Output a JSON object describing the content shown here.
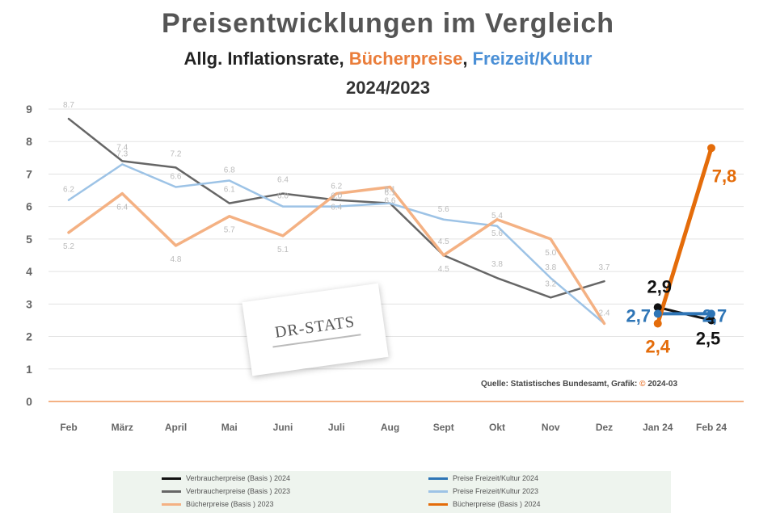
{
  "title": "Preisentwicklungen im  Vergleich",
  "subtitle": {
    "part1": "Allg. Inflationsrate, ",
    "part2": "Bücherpreise",
    "part3": ", ",
    "part4": "Freizeit/Kultur"
  },
  "year_label": "2024/2023",
  "source": {
    "text": "Quelle: Statistisches Bundesamt, Grafik: ",
    "highlight": "©",
    "suffix": " 2024-03"
  },
  "stamp_text": "DR-STATS",
  "colors": {
    "gray": "#666666",
    "light_blue": "#9dc3e6",
    "light_orange": "#f4b183",
    "black": "#111111",
    "blue": "#2e75b6",
    "orange": "#e46c0a",
    "axis_line": "#f4b183"
  },
  "legend": [
    {
      "label": "Verbraucherpreise (Basis ) 2024",
      "color": "#111111"
    },
    {
      "label": "Preise Freizeit/Kultur 2024",
      "color": "#2e75b6"
    },
    {
      "label": "Verbraucherpreise (Basis ) 2023",
      "color": "#666666"
    },
    {
      "label": "Preise Freizeit/Kultur 2023",
      "color": "#9dc3e6"
    },
    {
      "label": "Bücherpreise (Basis ) 2023",
      "color": "#f4b183"
    },
    {
      "label": "Bücherpreise (Basis ) 2024",
      "color": "#e46c0a"
    }
  ],
  "chart_data": {
    "type": "line",
    "categories": [
      "Feb",
      "März",
      "April",
      "Mai",
      "Juni",
      "Juli",
      "Aug",
      "Sept",
      "Okt",
      "Nov",
      "Dez",
      "Jan 24",
      "Feb 24"
    ],
    "ylim": [
      0,
      9
    ],
    "yticks": [
      0,
      1,
      2,
      3,
      4,
      5,
      6,
      7,
      8,
      9
    ],
    "grid": true,
    "series": [
      {
        "name": "Verbraucherpreise (Basis ) 2023",
        "color": "#666666",
        "width": 2.5,
        "values": [
          8.7,
          7.4,
          7.2,
          6.1,
          6.4,
          6.2,
          6.1,
          4.5,
          3.8,
          3.2,
          3.7,
          null,
          null
        ],
        "labels": [
          "8.7",
          "7.4",
          "7.2",
          "6.1",
          "6.4",
          "6.2",
          "6.1",
          "4.5",
          "3.8",
          "3.2",
          "3.7",
          null,
          null
        ]
      },
      {
        "name": "Preise Freizeit/Kultur 2023",
        "color": "#9dc3e6",
        "width": 2.5,
        "values": [
          6.2,
          7.3,
          6.6,
          6.8,
          6.0,
          6.0,
          6.1,
          5.6,
          5.4,
          3.8,
          2.4,
          null,
          null
        ],
        "labels": [
          "6.2",
          "7.3",
          "6.6",
          "6.8",
          "6.0",
          "6.0",
          "6.1",
          "5.6",
          "5.4",
          "3.8",
          "2.4",
          null,
          null
        ]
      },
      {
        "name": "Bücherpreise (Basis ) 2023",
        "color": "#f4b183",
        "width": 3.5,
        "values": [
          5.2,
          6.4,
          4.8,
          5.7,
          5.1,
          6.4,
          6.6,
          4.5,
          5.6,
          5.0,
          2.4,
          null,
          null
        ],
        "labels": [
          "5.2",
          "6.4",
          "4.8",
          "5.7",
          "5.1",
          "6.4",
          "6.6",
          "4.5",
          "5.6",
          "5.0",
          null,
          null,
          null
        ]
      },
      {
        "name": "Verbraucherpreise (Basis ) 2024",
        "color": "#111111",
        "width": 3,
        "values": [
          null,
          null,
          null,
          null,
          null,
          null,
          null,
          null,
          null,
          null,
          null,
          2.9,
          2.5
        ],
        "labels": [
          null,
          null,
          null,
          null,
          null,
          null,
          null,
          null,
          null,
          null,
          null,
          "2,9",
          "2,5"
        ]
      },
      {
        "name": "Preise Freizeit/Kultur 2024",
        "color": "#2e75b6",
        "width": 4,
        "values": [
          null,
          null,
          null,
          null,
          null,
          null,
          null,
          null,
          null,
          null,
          null,
          2.7,
          2.7
        ],
        "labels": [
          null,
          null,
          null,
          null,
          null,
          null,
          null,
          null,
          null,
          null,
          null,
          "2,7",
          "2,7"
        ]
      },
      {
        "name": "Bücherpreise (Basis ) 2024",
        "color": "#e46c0a",
        "width": 5,
        "values": [
          null,
          null,
          null,
          null,
          null,
          null,
          null,
          null,
          null,
          null,
          null,
          2.4,
          7.8
        ],
        "labels": [
          null,
          null,
          null,
          null,
          null,
          null,
          null,
          null,
          null,
          null,
          null,
          "2,4",
          "7,8"
        ]
      }
    ]
  }
}
